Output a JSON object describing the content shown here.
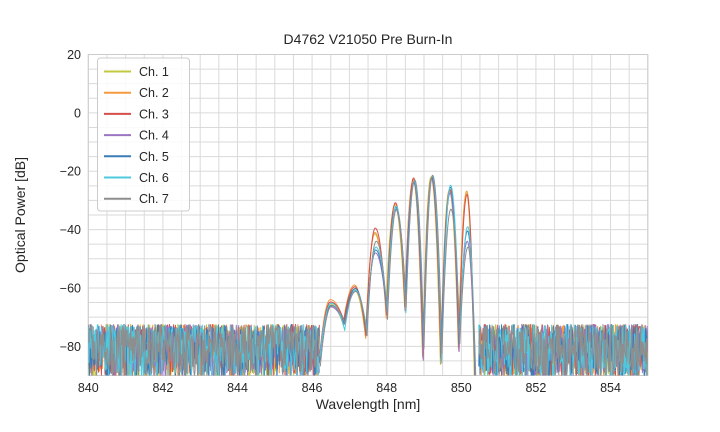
{
  "chart_data": {
    "type": "line",
    "title": "D4762 V21050 Pre Burn-In",
    "xlabel": "Wavelength [nm]",
    "ylabel": "Optical Power [dB]",
    "xlim": [
      840,
      855
    ],
    "ylim": [
      -90,
      20
    ],
    "xticks": [
      840,
      842,
      844,
      846,
      848,
      850,
      852,
      854
    ],
    "yticks": [
      20,
      0,
      -20,
      -40,
      -60,
      -80
    ],
    "grid": {
      "on": true,
      "x_step_nm": 0.5,
      "y_step_db": 5,
      "color": "#dadada",
      "spine_color": "#cccccc"
    },
    "legend": {
      "position": "upper left",
      "entries": [
        "Ch. 1",
        "Ch. 2",
        "Ch. 3",
        "Ch. 4",
        "Ch. 5",
        "Ch. 6",
        "Ch. 7"
      ]
    },
    "series": [
      {
        "name": "Ch. 1",
        "color": "#c2c93d"
      },
      {
        "name": "Ch. 2",
        "color": "#f6993f"
      },
      {
        "name": "Ch. 3",
        "color": "#d64f4a"
      },
      {
        "name": "Ch. 4",
        "color": "#9b74c2"
      },
      {
        "name": "Ch. 5",
        "color": "#3a7cb8"
      },
      {
        "name": "Ch. 6",
        "color": "#4ec9de"
      },
      {
        "name": "Ch. 7",
        "color": "#8e8e8e"
      }
    ],
    "signal": {
      "description": "Multi-lobe laser spectrum; lobed signal between 846.2 and 850.4 nm, broadband noise floor elsewhere",
      "region_nm": [
        846.2,
        850.4
      ],
      "lobe_centers_nm": [
        846.5,
        847.15,
        847.7,
        848.24,
        848.73,
        849.21,
        849.7,
        850.16
      ],
      "dip_boundaries_nm": [
        846.2,
        846.86,
        847.45,
        848.0,
        848.5,
        848.98,
        849.46,
        849.94,
        850.38
      ],
      "dip_depths_db": [
        -84,
        -73,
        -75,
        -68,
        -66,
        -82,
        -84,
        -81,
        -97
      ],
      "dip_jitter_db": [
        6,
        4,
        5,
        6,
        9,
        6,
        5,
        5,
        2
      ],
      "peaks_db": [
        [
          -65.5,
          -60.5,
          -41.5,
          -31.8,
          -23.2,
          -22.0,
          -26.5,
          -27.5
        ],
        [
          -64.0,
          -59.0,
          -41.0,
          -31.2,
          -22.8,
          -22.2,
          -26.8,
          -26.8
        ],
        [
          -64.8,
          -59.6,
          -39.5,
          -30.8,
          -22.3,
          -22.4,
          -26.2,
          -28.0
        ],
        [
          -66.5,
          -61.0,
          -48.0,
          -33.0,
          -24.0,
          -22.6,
          -27.5,
          -44.0
        ],
        [
          -66.0,
          -60.2,
          -47.0,
          -32.4,
          -23.8,
          -22.1,
          -25.5,
          -40.5
        ],
        [
          -65.2,
          -60.8,
          -46.0,
          -32.0,
          -23.5,
          -21.6,
          -24.8,
          -39.0
        ],
        [
          -66.2,
          -61.2,
          -44.0,
          -33.2,
          -23.0,
          -21.4,
          -33.0,
          -46.0
        ]
      ],
      "channel_x_offset_step_nm": 0.007
    },
    "noise": {
      "floor_top_db": -72.5,
      "floor_range_db": 19,
      "bias_exponent": 1.25,
      "left_region_nm": [
        840.0,
        846.2
      ],
      "right_region_nm": [
        850.47,
        855.0
      ],
      "step_nm": 0.016
    }
  }
}
